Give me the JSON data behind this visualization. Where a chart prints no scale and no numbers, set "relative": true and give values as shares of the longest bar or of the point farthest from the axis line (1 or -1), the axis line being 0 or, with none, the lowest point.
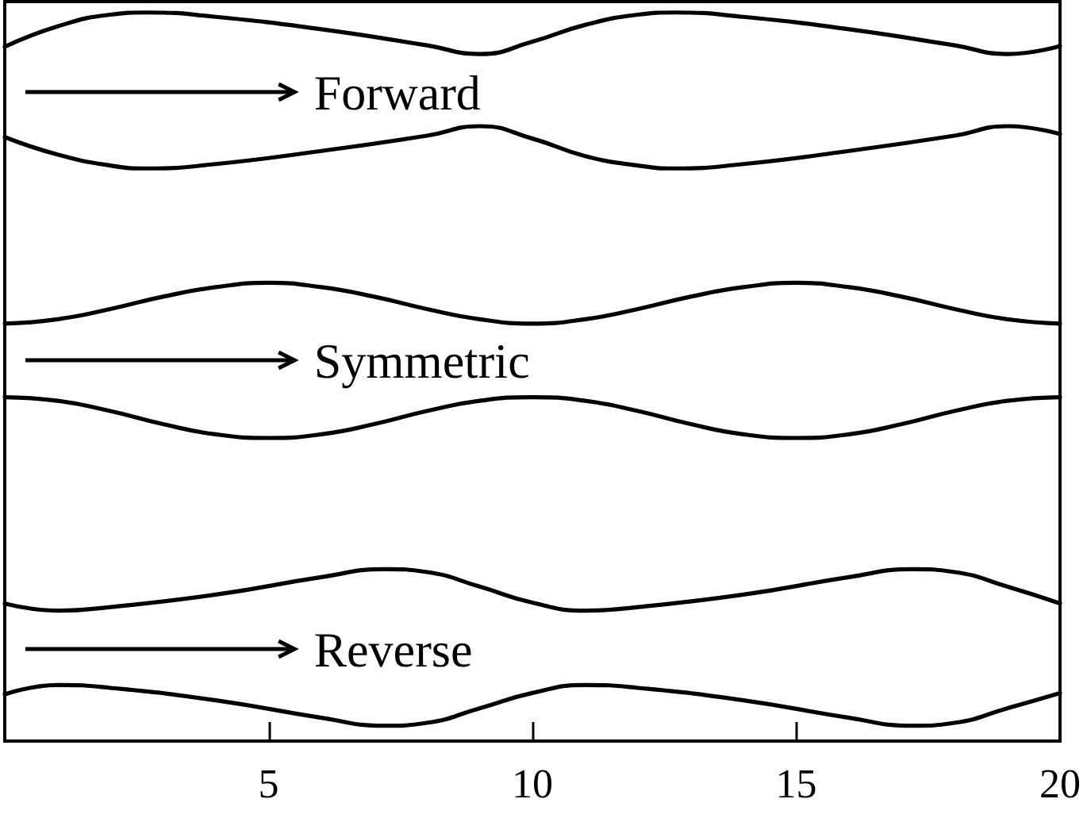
{
  "chart_data": {
    "type": "line",
    "relative": true,
    "tick_labels": "x",
    "marker": "none",
    "line_style": "solid",
    "xlim": [
      0,
      20
    ],
    "xticks": [
      {
        "value": 0,
        "label": null
      },
      5,
      10,
      15,
      20
    ],
    "annotations": [
      "Forward",
      "Symmetric",
      "Reverse"
    ],
    "series": [
      {
        "color": "#000000",
        "x": [
          0,
          1,
          2,
          2.7,
          4,
          6,
          8,
          9,
          10,
          11,
          12,
          12.7,
          14,
          16,
          18,
          19,
          20
        ],
        "values": [
          0.953,
          0.981,
          0.997,
          1.0,
          0.994,
          0.977,
          0.955,
          0.943,
          0.96,
          0.983,
          0.997,
          1.0,
          0.994,
          0.977,
          0.955,
          0.943,
          0.954
        ]
      },
      {
        "color": "#000000",
        "x": [
          0,
          1,
          2,
          2.7,
          4,
          6,
          8,
          9,
          10,
          11,
          12,
          12.7,
          14,
          16,
          18,
          19,
          20
        ],
        "values": [
          0.829,
          0.805,
          0.79,
          0.786,
          0.792,
          0.81,
          0.831,
          0.844,
          0.827,
          0.803,
          0.79,
          0.786,
          0.792,
          0.81,
          0.831,
          0.844,
          0.833
        ]
      },
      {
        "color": "#000000",
        "x": [
          0,
          1,
          2,
          3,
          4,
          5,
          6,
          7,
          8,
          9,
          10,
          11,
          12,
          13,
          14,
          15,
          16,
          17,
          18,
          19,
          20
        ],
        "values": [
          0.573,
          0.579,
          0.593,
          0.61,
          0.623,
          0.629,
          0.623,
          0.61,
          0.593,
          0.579,
          0.573,
          0.579,
          0.593,
          0.61,
          0.623,
          0.629,
          0.623,
          0.61,
          0.593,
          0.579,
          0.573
        ]
      },
      {
        "color": "#000000",
        "x": [
          0,
          1,
          2,
          3,
          4,
          5,
          6,
          7,
          8,
          9,
          10,
          11,
          12,
          13,
          14,
          15,
          16,
          17,
          18,
          19,
          20
        ],
        "values": [
          0.472,
          0.467,
          0.453,
          0.435,
          0.421,
          0.416,
          0.421,
          0.435,
          0.453,
          0.467,
          0.472,
          0.467,
          0.453,
          0.435,
          0.421,
          0.416,
          0.421,
          0.435,
          0.453,
          0.467,
          0.472
        ]
      },
      {
        "color": "#000000",
        "x": [
          0,
          1,
          2,
          4,
          6,
          7.2,
          8,
          9,
          10,
          11,
          12,
          14,
          16,
          17.2,
          18,
          19,
          20
        ],
        "values": [
          0.189,
          0.179,
          0.184,
          0.201,
          0.225,
          0.236,
          0.232,
          0.212,
          0.19,
          0.179,
          0.184,
          0.201,
          0.225,
          0.236,
          0.232,
          0.212,
          0.189
        ]
      },
      {
        "color": "#000000",
        "x": [
          0,
          1,
          2,
          4,
          6,
          7.2,
          8,
          9,
          10,
          11,
          12,
          14,
          16,
          17.2,
          18,
          19,
          20
        ],
        "values": [
          0.064,
          0.077,
          0.073,
          0.056,
          0.032,
          0.021,
          0.025,
          0.045,
          0.066,
          0.077,
          0.073,
          0.056,
          0.032,
          0.021,
          0.025,
          0.045,
          0.066
        ]
      }
    ]
  }
}
